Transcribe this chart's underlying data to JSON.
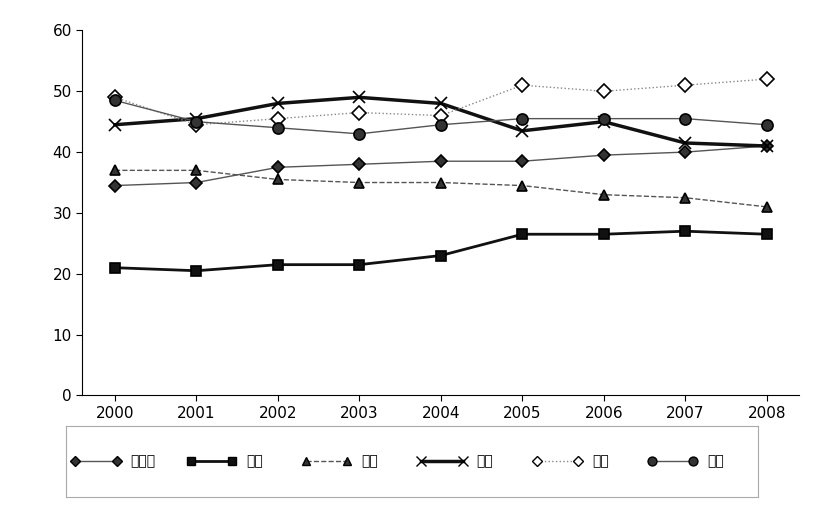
{
  "years": [
    2000,
    2001,
    2002,
    2003,
    2004,
    2005,
    2006,
    2007,
    2008
  ],
  "series": {
    "프랑스": [
      34.5,
      35.0,
      37.5,
      38.0,
      38.5,
      38.5,
      39.5,
      40.0,
      41.0
    ],
    "독일": [
      21.0,
      20.5,
      21.5,
      21.5,
      23.0,
      26.5,
      26.5,
      27.0,
      26.5
    ],
    "일본": [
      37.0,
      37.0,
      35.5,
      35.0,
      35.0,
      34.5,
      33.0,
      32.5,
      31.0
    ],
    "한국": [
      44.5,
      45.5,
      48.0,
      49.0,
      48.0,
      43.5,
      45.0,
      41.5,
      41.0
    ],
    "영국": [
      49.0,
      44.5,
      45.5,
      46.5,
      46.0,
      51.0,
      50.0,
      51.0,
      52.0
    ],
    "미국": [
      48.5,
      45.0,
      44.0,
      43.0,
      44.5,
      45.5,
      45.5,
      45.5,
      44.5
    ]
  },
  "markers": {
    "프랑스": "D",
    "독일": "s",
    "일본": "^",
    "한국": "x",
    "영국": "D",
    "미국": "o"
  },
  "linestyles": {
    "프랑스": "-",
    "독일": "-",
    "일본": "--",
    "한국": "-",
    "영국": ":",
    "미국": "-"
  },
  "linewidths": {
    "프랑스": 1.0,
    "독일": 2.0,
    "일본": 1.0,
    "한국": 2.5,
    "영국": 1.0,
    "미국": 1.0
  },
  "colors": {
    "프랑스": "#555555",
    "독일": "#111111",
    "일본": "#555555",
    "한국": "#111111",
    "영국": "#888888",
    "미국": "#555555"
  },
  "markerfill": {
    "프랑스": "#333333",
    "독일": "#111111",
    "일본": "#333333",
    "한국": "none",
    "영국": "white",
    "미국": "#333333"
  },
  "markersize": {
    "프랑스": 6,
    "독일": 7,
    "일본": 7,
    "한국": 9,
    "영국": 7,
    "미국": 8
  },
  "ylim": [
    0,
    60
  ],
  "yticks": [
    0,
    10,
    20,
    30,
    40,
    50,
    60
  ],
  "xlim": [
    1999.6,
    2008.4
  ],
  "legend_labels": [
    "프랑스",
    "독일",
    "일본",
    "한국",
    "영국",
    "미국"
  ],
  "background_color": "#ffffff",
  "legend_fontsize": 10,
  "tick_fontsize": 11
}
